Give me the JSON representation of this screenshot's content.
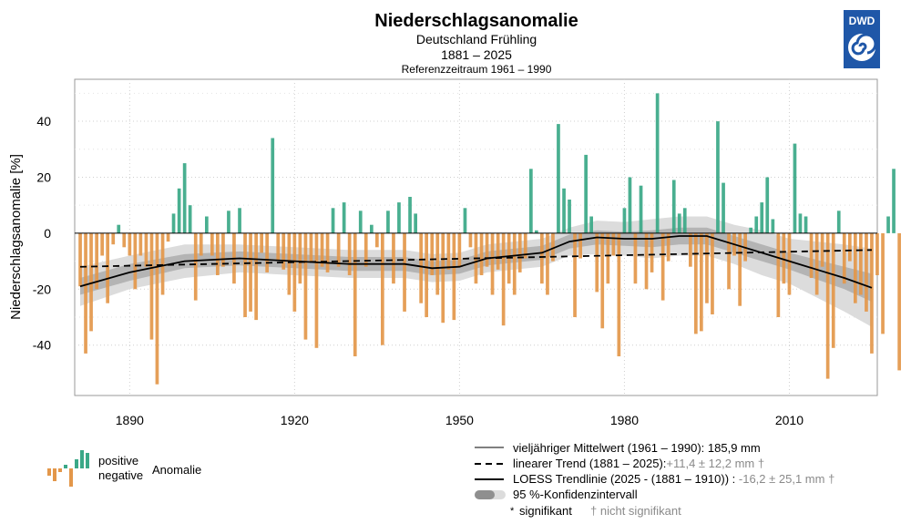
{
  "chart_data": {
    "type": "bar",
    "title": "Niederschlagsanomalie",
    "subtitle1": "Deutschland Frühling",
    "subtitle2": "1881 – 2025",
    "subtitle3": "Referenzzeitraum 1961 – 1990",
    "ylabel": "Niederschlagsanomalie [%]",
    "xlabel": "",
    "xlim": [
      1880,
      2026
    ],
    "ylim": [
      -58,
      55
    ],
    "x_ticks": [
      1890,
      1920,
      1950,
      1980,
      2010
    ],
    "y_ticks": [
      -40,
      -20,
      0,
      20,
      40
    ],
    "grid": true,
    "colors": {
      "positive": "#3aa887",
      "negative": "#e3974a",
      "band_outer": "#dcdcdc",
      "band_inner": "#b4b4b4",
      "line": "#000000"
    },
    "years_start": 1881,
    "values": [
      -19,
      -43,
      -35,
      -20,
      -8,
      -25,
      -4,
      3,
      -5,
      -8,
      -20,
      -8,
      -12,
      -38,
      -54,
      -22,
      -3,
      7,
      16,
      25,
      10,
      -24,
      -8,
      6,
      -8,
      -15,
      -12,
      8,
      -18,
      9,
      -30,
      -28,
      -31,
      -7,
      -14,
      34,
      -10,
      -13,
      -22,
      -28,
      -18,
      -38,
      -10,
      -41,
      -12,
      -14,
      9,
      -12,
      11,
      -15,
      -44,
      8,
      -12,
      3,
      -5,
      -40,
      8,
      -18,
      11,
      -28,
      13,
      7,
      -25,
      -30,
      -15,
      -22,
      -32,
      -13,
      -31,
      -12,
      9,
      -5,
      -18,
      -15,
      -12,
      -22,
      -13,
      -33,
      -18,
      -22,
      -14,
      -9,
      23,
      1,
      -18,
      -22,
      -10,
      39,
      16,
      12,
      -30,
      -9,
      28,
      6,
      -21,
      -34,
      -18,
      -8,
      -44,
      9,
      20,
      -18,
      17,
      -20,
      -14,
      50,
      -24,
      -10,
      19,
      7,
      9,
      -12,
      -36,
      -35,
      -25,
      -29,
      40,
      18,
      -20,
      -8,
      -26,
      -10,
      2,
      6,
      11,
      20,
      5,
      -30,
      -18,
      -22,
      32,
      7,
      6,
      -16,
      -22,
      -12,
      -52,
      -41,
      8,
      -18,
      -10,
      -25,
      -22,
      -28,
      -43,
      -15,
      -36,
      6,
      23,
      -49
    ],
    "long_term_mean": {
      "label": "vieljähriger Mittelwert (1961 – 1990):",
      "value_text": "185,9 mm"
    },
    "linear_trend": {
      "label": "linearer Trend (1881 – 2025):",
      "value_text": "+11,4 ± 12,2 mm",
      "marker": "†",
      "x": [
        1881,
        2025
      ],
      "y": [
        -12,
        -6
      ]
    },
    "loess": {
      "label": "LOESS Trendlinie (2025 - (1881 – 1910)) :",
      "value_text": "-16,2 ± 25,1 mm",
      "marker": "†",
      "x": [
        1881,
        1890,
        1900,
        1910,
        1920,
        1930,
        1940,
        1945,
        1950,
        1955,
        1960,
        1965,
        1970,
        1975,
        1980,
        1985,
        1990,
        1995,
        2000,
        2005,
        2010,
        2015,
        2020,
        2025
      ],
      "y": [
        -19,
        -14,
        -10,
        -9,
        -10,
        -11,
        -11,
        -12.5,
        -12,
        -9,
        -8,
        -7,
        -3,
        -1.5,
        -2,
        -2,
        -1,
        -1,
        -4,
        -7,
        -10,
        -13,
        -16,
        -19.5
      ]
    },
    "ci_outer_halfwidth": [
      7,
      6,
      6,
      5,
      5,
      5,
      5,
      5,
      5,
      5,
      5,
      5,
      5,
      6,
      6,
      7,
      7,
      7,
      7,
      8,
      8,
      10,
      12,
      14
    ],
    "ci_inner_halfwidth": [
      3,
      3,
      2.5,
      2.5,
      2.5,
      2.5,
      2.5,
      2.5,
      2.5,
      2.5,
      2.5,
      2.5,
      2.5,
      2.5,
      2.5,
      3,
      3,
      3,
      3,
      3,
      3,
      3.5,
      4,
      5
    ],
    "legend": {
      "positive": "positive",
      "negative": "negative",
      "anomaly": "Anomalie",
      "ci": "95 %-Konfidenzintervall",
      "sig": "signifikant",
      "sig_marker": "*",
      "nsig_marker": "†",
      "nsig": "nicht signifikant"
    },
    "logo_text": "DWD"
  }
}
